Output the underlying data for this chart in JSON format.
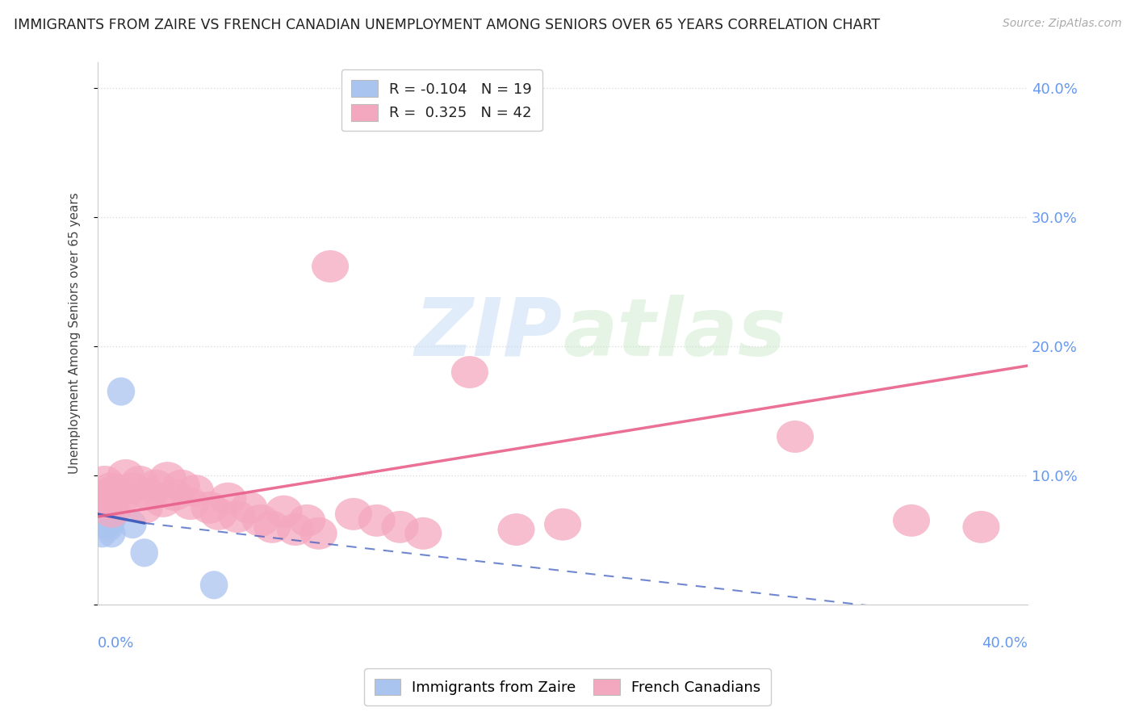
{
  "title": "IMMIGRANTS FROM ZAIRE VS FRENCH CANADIAN UNEMPLOYMENT AMONG SENIORS OVER 65 YEARS CORRELATION CHART",
  "source": "Source: ZipAtlas.com",
  "ylabel": "Unemployment Among Seniors over 65 years",
  "ytick_labels": [
    "",
    "10.0%",
    "20.0%",
    "30.0%",
    "40.0%"
  ],
  "ytick_values": [
    0.0,
    0.1,
    0.2,
    0.3,
    0.4
  ],
  "xlim": [
    0.0,
    0.4
  ],
  "ylim": [
    0.0,
    0.42
  ],
  "legend_blue_R": "R = -0.104",
  "legend_blue_N": "N = 19",
  "legend_pink_R": "R =  0.325",
  "legend_pink_N": "N = 42",
  "blue_color": "#aac4f0",
  "pink_color": "#f4a8c0",
  "blue_line_color": "#3355bb",
  "pink_line_color": "#e8608a",
  "blue_scatter": [
    [
      0.001,
      0.075
    ],
    [
      0.002,
      0.055
    ],
    [
      0.002,
      0.068
    ],
    [
      0.003,
      0.065
    ],
    [
      0.003,
      0.07
    ],
    [
      0.003,
      0.073
    ],
    [
      0.003,
      0.062
    ],
    [
      0.004,
      0.067
    ],
    [
      0.004,
      0.072
    ],
    [
      0.004,
      0.065
    ],
    [
      0.005,
      0.068
    ],
    [
      0.005,
      0.063
    ],
    [
      0.005,
      0.06
    ],
    [
      0.006,
      0.065
    ],
    [
      0.006,
      0.055
    ],
    [
      0.01,
      0.165
    ],
    [
      0.015,
      0.062
    ],
    [
      0.02,
      0.04
    ],
    [
      0.05,
      0.015
    ]
  ],
  "pink_scatter": [
    [
      0.002,
      0.08
    ],
    [
      0.003,
      0.095
    ],
    [
      0.004,
      0.085
    ],
    [
      0.005,
      0.078
    ],
    [
      0.006,
      0.09
    ],
    [
      0.006,
      0.072
    ],
    [
      0.008,
      0.088
    ],
    [
      0.01,
      0.082
    ],
    [
      0.012,
      0.1
    ],
    [
      0.015,
      0.09
    ],
    [
      0.018,
      0.095
    ],
    [
      0.02,
      0.075
    ],
    [
      0.022,
      0.085
    ],
    [
      0.025,
      0.092
    ],
    [
      0.028,
      0.08
    ],
    [
      0.03,
      0.098
    ],
    [
      0.033,
      0.085
    ],
    [
      0.036,
      0.092
    ],
    [
      0.04,
      0.078
    ],
    [
      0.042,
      0.088
    ],
    [
      0.048,
      0.075
    ],
    [
      0.052,
      0.07
    ],
    [
      0.056,
      0.082
    ],
    [
      0.06,
      0.068
    ],
    [
      0.065,
      0.075
    ],
    [
      0.07,
      0.065
    ],
    [
      0.075,
      0.06
    ],
    [
      0.08,
      0.072
    ],
    [
      0.085,
      0.058
    ],
    [
      0.09,
      0.065
    ],
    [
      0.095,
      0.055
    ],
    [
      0.1,
      0.262
    ],
    [
      0.11,
      0.07
    ],
    [
      0.12,
      0.065
    ],
    [
      0.13,
      0.06
    ],
    [
      0.14,
      0.055
    ],
    [
      0.16,
      0.18
    ],
    [
      0.18,
      0.058
    ],
    [
      0.2,
      0.062
    ],
    [
      0.3,
      0.13
    ],
    [
      0.35,
      0.065
    ],
    [
      0.38,
      0.06
    ]
  ],
  "blue_line_solid": [
    [
      0.0,
      0.07
    ],
    [
      0.02,
      0.063
    ]
  ],
  "blue_line_dashed": [
    [
      0.02,
      0.063
    ],
    [
      0.4,
      -0.015
    ]
  ],
  "pink_line": [
    [
      0.0,
      0.068
    ],
    [
      0.4,
      0.185
    ]
  ],
  "watermark_zip": "ZIP",
  "watermark_atlas": "atlas",
  "grid_color": "#dddddd",
  "background_color": "#ffffff",
  "right_tick_color": "#6699ee",
  "bottom_tick_color": "#6699ee"
}
